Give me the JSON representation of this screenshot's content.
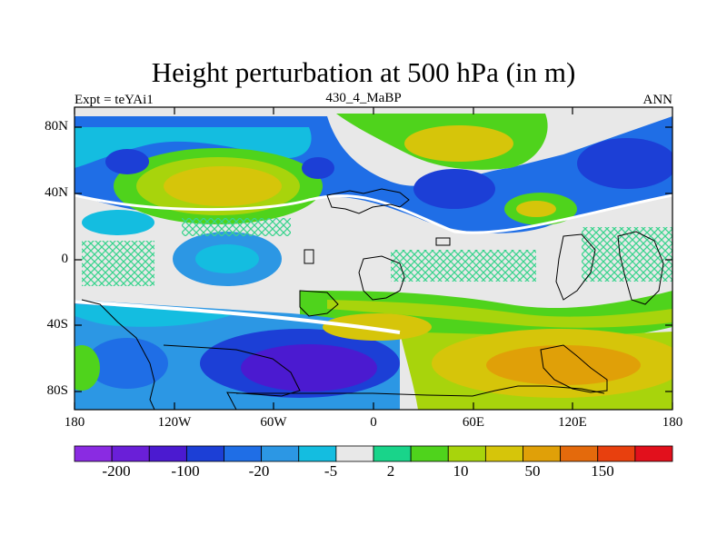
{
  "figure": {
    "title": "Height perturbation at 500 hPa (in m)",
    "left_label": "Expt = teYAi1",
    "center_label": "430_4_MaBP",
    "right_label": "ANN"
  },
  "axes": {
    "x_ticks": [
      "180",
      "120W",
      "60W",
      "0",
      "60E",
      "120E",
      "180"
    ],
    "y_ticks": [
      "80N",
      "40N",
      "0",
      "40S",
      "80S"
    ]
  },
  "colorbar": {
    "colors": [
      "#8a2be2",
      "#6a1fd8",
      "#4b1ad0",
      "#1c3fd6",
      "#1f6ee6",
      "#2c97e4",
      "#14bde0",
      "#e8e8e8",
      "#19d48a",
      "#4fd31c",
      "#a8d40c",
      "#d6c50a",
      "#e0a008",
      "#e46a0c",
      "#e8400e",
      "#e2101c"
    ],
    "labels": [
      "-200",
      "-100",
      "-20",
      "-5",
      "2",
      "10",
      "50",
      "150"
    ]
  }
}
